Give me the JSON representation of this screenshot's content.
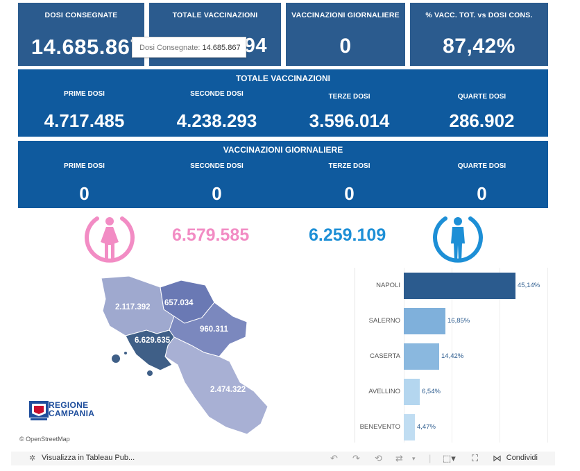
{
  "kpis": [
    {
      "title": "DOSI  CONSEGNATE",
      "value": "14.685.867"
    },
    {
      "title": "TOTALE VACCINAZIONI",
      "value": "12.838.694"
    },
    {
      "title": "VACCINAZIONI GIORNALIERE",
      "value": "0"
    },
    {
      "title": "% VACC. TOT. vs DOSI CONS.",
      "value": "87,42%"
    }
  ],
  "tooltip": {
    "label": "Dosi Consegnate:",
    "value": "14.685.867"
  },
  "totale": {
    "title": "TOTALE VACCINAZIONI",
    "items": [
      {
        "label": "PRIME DOSI",
        "value": "4.717.485"
      },
      {
        "label": "SECONDE DOSI",
        "value": "4.238.293"
      },
      {
        "label": "TERZE DOSI",
        "value": "3.596.014"
      },
      {
        "label": "QUARTE DOSI",
        "value": "286.902"
      }
    ]
  },
  "giornaliere": {
    "title": "VACCINAZIONI GIORNALIERE",
    "items": [
      {
        "label": "PRIME DOSI",
        "value": "0"
      },
      {
        "label": "SECONDE DOSI",
        "value": "0"
      },
      {
        "label": "TERZE DOSI",
        "value": "0"
      },
      {
        "label": "QUARTE DOSI",
        "value": "0"
      }
    ]
  },
  "gender": {
    "female": {
      "value": "6.579.585",
      "icon": "female-icon",
      "color": "#f28cc4"
    },
    "male": {
      "value": "6.259.109",
      "icon": "male-icon",
      "color": "#1d8fd6"
    }
  },
  "map": {
    "labels": [
      "2.117.392",
      "657.034",
      "960.311",
      "6.629.635",
      "2.474.322"
    ],
    "logo": {
      "line1": "REGIONE",
      "line2": "CAMPANIA"
    },
    "credit": "© OpenStreetMap"
  },
  "chart_data": {
    "type": "bar",
    "categories": [
      "NAPOLI",
      "SALERNO",
      "CASERTA",
      "AVELLINO",
      "BENEVENTO"
    ],
    "values": [
      45.14,
      16.85,
      14.42,
      6.54,
      4.47
    ],
    "labels": [
      "45,14%",
      "16,85%",
      "14,42%",
      "6,54%",
      "4,47%"
    ],
    "colors": [
      "#2b5b8e",
      "#7fb0db",
      "#8ab8df",
      "#b4d6ef",
      "#c0ddf2"
    ]
  },
  "toolbar": {
    "view_label": "Visualizza in Tableau Pub...",
    "share_label": "Condividi"
  }
}
